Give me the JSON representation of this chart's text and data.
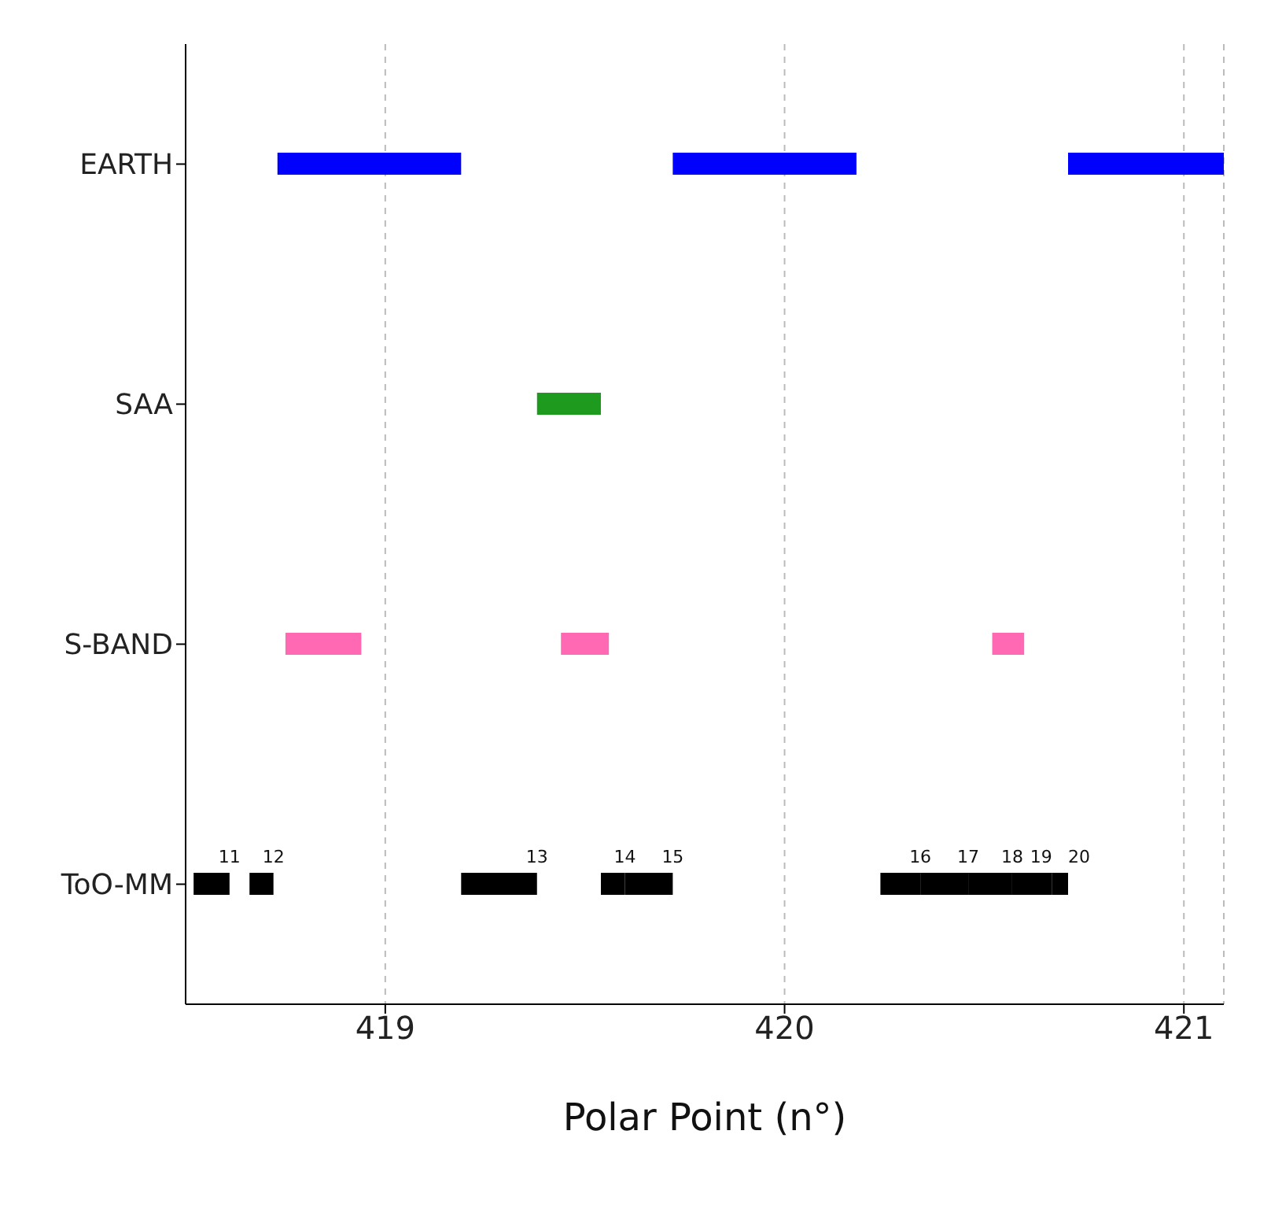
{
  "chart_data": {
    "type": "bar",
    "orientation": "horizontal",
    "xlabel": "Polar Point (n°)",
    "categories": [
      "EARTH",
      "SAA",
      "S-BAND",
      "ToO-MM"
    ],
    "series": [
      {
        "colors": [
          "#0000ff",
          "#1e9a1e",
          "#ff69b4",
          "#000000"
        ],
        "base": [
          418.73,
          419.38,
          418.75,
          418.52
        ],
        "values": [
          0.46,
          0.16,
          0.19,
          0.09
        ]
      },
      {
        "colors": [
          "#0000ff",
          "#1e9a1e",
          "#ff69b4",
          "#000000"
        ],
        "base": [
          419.72,
          null,
          419.44,
          418.66
        ],
        "values": [
          0.46,
          null,
          0.12,
          0.06
        ]
      },
      {
        "colors": [
          "#0000ff",
          "#1e9a1e",
          "#ff69b4",
          "#000000"
        ],
        "base": [
          420.71,
          null,
          420.52,
          419.19
        ],
        "values": [
          0.39,
          null,
          0.08,
          0.19
        ]
      },
      {
        "colors": [
          "#0000ff",
          "#1e9a1e",
          "#ff69b4",
          "#000000"
        ],
        "base": [
          null,
          null,
          null,
          419.54
        ],
        "values": [
          null,
          null,
          null,
          0.06
        ]
      },
      {
        "colors": [
          "#0000ff",
          "#1e9a1e",
          "#ff69b4",
          "#000000"
        ],
        "base": [
          null,
          null,
          null,
          419.6
        ],
        "values": [
          null,
          null,
          null,
          0.12
        ]
      },
      {
        "colors": [
          "#0000ff",
          "#1e9a1e",
          "#ff69b4",
          "#000000"
        ],
        "base": [
          null,
          null,
          null,
          420.24
        ],
        "values": [
          null,
          null,
          null,
          0.1
        ]
      },
      {
        "colors": [
          "#0000ff",
          "#1e9a1e",
          "#ff69b4",
          "#000000"
        ],
        "base": [
          null,
          null,
          null,
          420.34
        ],
        "values": [
          null,
          null,
          null,
          0.12
        ]
      },
      {
        "colors": [
          "#0000ff",
          "#1e9a1e",
          "#ff69b4",
          "#000000"
        ],
        "base": [
          null,
          null,
          null,
          420.46
        ],
        "values": [
          null,
          null,
          null,
          0.11
        ]
      },
      {
        "colors": [
          "#0000ff",
          "#1e9a1e",
          "#ff69b4",
          "#000000"
        ],
        "base": [
          null,
          null,
          null,
          420.57
        ],
        "values": [
          null,
          null,
          null,
          0.1
        ]
      },
      {
        "colors": [
          "#0000ff",
          "#1e9a1e",
          "#ff69b4",
          "#000000"
        ],
        "base": [
          null,
          null,
          null,
          420.67
        ],
        "values": [
          null,
          null,
          null,
          0.04
        ]
      }
    ],
    "xlim": [
      418.5,
      421.1
    ],
    "xticks": [
      419,
      420,
      421
    ],
    "grid": "x",
    "annotations": [
      {
        "text": "11",
        "x": 418.61,
        "y": "ToO-MM"
      },
      {
        "text": "12",
        "x": 418.72,
        "y": "ToO-MM"
      },
      {
        "text": "13",
        "x": 419.38,
        "y": "ToO-MM"
      },
      {
        "text": "14",
        "x": 419.6,
        "y": "ToO-MM"
      },
      {
        "text": "15",
        "x": 419.72,
        "y": "ToO-MM"
      },
      {
        "text": "16",
        "x": 420.34,
        "y": "ToO-MM"
      },
      {
        "text": "17",
        "x": 420.46,
        "y": "ToO-MM"
      },
      {
        "text": "18",
        "x": 420.57,
        "y": "ToO-MM"
      },
      {
        "text": "19",
        "x": 420.67,
        "y": "ToO-MM"
      },
      {
        "text": "20",
        "x": 420.71,
        "y": "ToO-MM"
      }
    ]
  }
}
